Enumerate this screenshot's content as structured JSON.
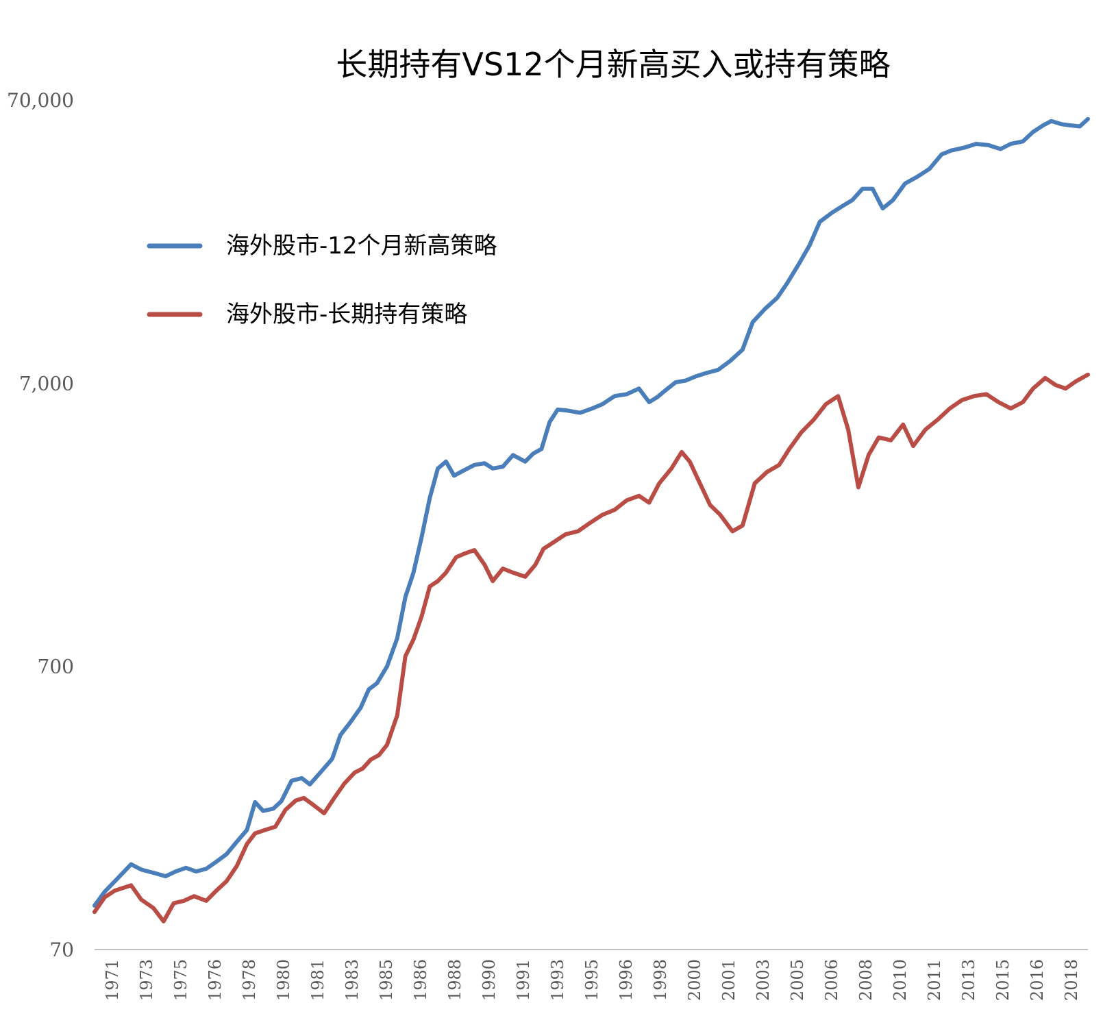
{
  "chart_data": {
    "type": "line",
    "title": "长期持有VS12个月新高买入或持有策略",
    "y_scale": "log",
    "ylim": [
      70,
      70000
    ],
    "y_ticks": [
      "70",
      "700",
      "7,000",
      "70,000"
    ],
    "y_tick_values": [
      70,
      700,
      7000,
      70000
    ],
    "x_tick_labels": [
      "1971",
      "1973",
      "1975",
      "1976",
      "1978",
      "1980",
      "1981",
      "1983",
      "1985",
      "1986",
      "1988",
      "1990",
      "1991",
      "1993",
      "1995",
      "1996",
      "1998",
      "2000",
      "2001",
      "2003",
      "2005",
      "2006",
      "2008",
      "2010",
      "2011",
      "2013",
      "2015",
      "2016",
      "2018"
    ],
    "xlim": [
      1971.0,
      2019.9
    ],
    "legend_position": "upper-left",
    "series": [
      {
        "name": "海外股市-12个月新高策略",
        "color": "#4a7ebb",
        "points": [
          [
            1971.0,
            100
          ],
          [
            1971.5,
            112
          ],
          [
            1972.0,
            122
          ],
          [
            1972.8,
            140
          ],
          [
            1973.3,
            134
          ],
          [
            1974.0,
            130
          ],
          [
            1974.5,
            127
          ],
          [
            1975.0,
            132
          ],
          [
            1975.5,
            136
          ],
          [
            1976.0,
            132
          ],
          [
            1976.5,
            135
          ],
          [
            1977.0,
            143
          ],
          [
            1977.5,
            152
          ],
          [
            1978.0,
            168
          ],
          [
            1978.5,
            185
          ],
          [
            1978.9,
            232
          ],
          [
            1979.3,
            216
          ],
          [
            1979.8,
            220
          ],
          [
            1980.2,
            234
          ],
          [
            1980.7,
            276
          ],
          [
            1981.2,
            282
          ],
          [
            1981.6,
            268
          ],
          [
            1982.2,
            300
          ],
          [
            1982.7,
            330
          ],
          [
            1983.1,
            400
          ],
          [
            1983.6,
            445
          ],
          [
            1984.1,
            500
          ],
          [
            1984.5,
            580
          ],
          [
            1984.9,
            610
          ],
          [
            1985.4,
            700
          ],
          [
            1985.9,
            880
          ],
          [
            1986.3,
            1230
          ],
          [
            1986.7,
            1500
          ],
          [
            1987.1,
            2000
          ],
          [
            1987.5,
            2750
          ],
          [
            1987.9,
            3500
          ],
          [
            1988.3,
            3700
          ],
          [
            1988.7,
            3300
          ],
          [
            1989.2,
            3450
          ],
          [
            1989.7,
            3600
          ],
          [
            1990.2,
            3650
          ],
          [
            1990.6,
            3500
          ],
          [
            1991.1,
            3550
          ],
          [
            1991.6,
            3900
          ],
          [
            1992.2,
            3700
          ],
          [
            1992.6,
            3950
          ],
          [
            1993.0,
            4100
          ],
          [
            1993.4,
            5100
          ],
          [
            1993.8,
            5650
          ],
          [
            1994.3,
            5600
          ],
          [
            1994.9,
            5500
          ],
          [
            1995.5,
            5700
          ],
          [
            1996.0,
            5900
          ],
          [
            1996.6,
            6300
          ],
          [
            1997.2,
            6400
          ],
          [
            1997.8,
            6700
          ],
          [
            1998.3,
            6000
          ],
          [
            1998.7,
            6250
          ],
          [
            1999.1,
            6600
          ],
          [
            1999.6,
            7050
          ],
          [
            2000.1,
            7150
          ],
          [
            2000.6,
            7400
          ],
          [
            2001.1,
            7600
          ],
          [
            2001.7,
            7800
          ],
          [
            2002.3,
            8400
          ],
          [
            2002.9,
            9200
          ],
          [
            2003.4,
            11500
          ],
          [
            2004.0,
            12800
          ],
          [
            2004.6,
            14000
          ],
          [
            2005.1,
            15800
          ],
          [
            2005.7,
            18600
          ],
          [
            2006.2,
            21500
          ],
          [
            2006.7,
            26000
          ],
          [
            2007.3,
            28000
          ],
          [
            2007.8,
            29500
          ],
          [
            2008.3,
            31000
          ],
          [
            2008.8,
            34000
          ],
          [
            2009.3,
            34000
          ],
          [
            2009.8,
            29000
          ],
          [
            2010.3,
            31000
          ],
          [
            2010.9,
            35500
          ],
          [
            2011.5,
            37500
          ],
          [
            2012.1,
            40000
          ],
          [
            2012.7,
            45000
          ],
          [
            2013.2,
            46500
          ],
          [
            2013.8,
            47500
          ],
          [
            2014.4,
            49000
          ],
          [
            2015.0,
            48500
          ],
          [
            2015.6,
            47000
          ],
          [
            2016.1,
            49000
          ],
          [
            2016.7,
            50000
          ],
          [
            2017.2,
            54000
          ],
          [
            2017.7,
            57000
          ],
          [
            2018.1,
            59000
          ],
          [
            2018.6,
            57500
          ],
          [
            2019.0,
            57000
          ],
          [
            2019.5,
            56500
          ],
          [
            2019.9,
            60000
          ]
        ]
      },
      {
        "name": "海外股市-长期持有策略",
        "color": "#b94c44",
        "points": [
          [
            1971.0,
            95
          ],
          [
            1971.5,
            107
          ],
          [
            1972.0,
            113
          ],
          [
            1972.8,
            118
          ],
          [
            1973.3,
            105
          ],
          [
            1973.9,
            98
          ],
          [
            1974.4,
            88
          ],
          [
            1974.9,
            102
          ],
          [
            1975.4,
            104
          ],
          [
            1975.9,
            108
          ],
          [
            1976.5,
            104
          ],
          [
            1977.0,
            113
          ],
          [
            1977.5,
            122
          ],
          [
            1978.0,
            138
          ],
          [
            1978.5,
            165
          ],
          [
            1978.9,
            180
          ],
          [
            1979.4,
            185
          ],
          [
            1979.9,
            190
          ],
          [
            1980.4,
            218
          ],
          [
            1980.9,
            235
          ],
          [
            1981.3,
            240
          ],
          [
            1981.8,
            226
          ],
          [
            1982.3,
            212
          ],
          [
            1982.8,
            240
          ],
          [
            1983.3,
            270
          ],
          [
            1983.8,
            295
          ],
          [
            1984.2,
            305
          ],
          [
            1984.6,
            328
          ],
          [
            1985.0,
            340
          ],
          [
            1985.4,
            370
          ],
          [
            1985.9,
            470
          ],
          [
            1986.3,
            760
          ],
          [
            1986.7,
            870
          ],
          [
            1987.1,
            1050
          ],
          [
            1987.5,
            1340
          ],
          [
            1987.9,
            1400
          ],
          [
            1988.3,
            1500
          ],
          [
            1988.8,
            1700
          ],
          [
            1989.2,
            1750
          ],
          [
            1989.7,
            1800
          ],
          [
            1990.2,
            1600
          ],
          [
            1990.6,
            1400
          ],
          [
            1991.1,
            1550
          ],
          [
            1991.6,
            1500
          ],
          [
            1992.2,
            1450
          ],
          [
            1992.7,
            1600
          ],
          [
            1993.1,
            1820
          ],
          [
            1993.6,
            1920
          ],
          [
            1994.2,
            2050
          ],
          [
            1994.8,
            2100
          ],
          [
            1995.4,
            2250
          ],
          [
            1996.0,
            2400
          ],
          [
            1996.6,
            2500
          ],
          [
            1997.2,
            2700
          ],
          [
            1997.8,
            2800
          ],
          [
            1998.3,
            2650
          ],
          [
            1998.8,
            3100
          ],
          [
            1999.4,
            3500
          ],
          [
            1999.9,
            4000
          ],
          [
            2000.3,
            3700
          ],
          [
            2000.8,
            3100
          ],
          [
            2001.3,
            2600
          ],
          [
            2001.8,
            2400
          ],
          [
            2002.4,
            2100
          ],
          [
            2002.9,
            2200
          ],
          [
            2003.5,
            3100
          ],
          [
            2004.1,
            3400
          ],
          [
            2004.7,
            3600
          ],
          [
            2005.2,
            4100
          ],
          [
            2005.8,
            4700
          ],
          [
            2006.4,
            5200
          ],
          [
            2007.0,
            5900
          ],
          [
            2007.6,
            6300
          ],
          [
            2008.1,
            4800
          ],
          [
            2008.6,
            3000
          ],
          [
            2009.1,
            3900
          ],
          [
            2009.6,
            4500
          ],
          [
            2010.2,
            4400
          ],
          [
            2010.8,
            5000
          ],
          [
            2011.3,
            4200
          ],
          [
            2011.9,
            4800
          ],
          [
            2012.5,
            5200
          ],
          [
            2013.1,
            5700
          ],
          [
            2013.7,
            6100
          ],
          [
            2014.3,
            6300
          ],
          [
            2014.9,
            6400
          ],
          [
            2015.5,
            6000
          ],
          [
            2016.1,
            5700
          ],
          [
            2016.7,
            6000
          ],
          [
            2017.2,
            6700
          ],
          [
            2017.8,
            7300
          ],
          [
            2018.3,
            6900
          ],
          [
            2018.8,
            6700
          ],
          [
            2019.3,
            7100
          ],
          [
            2019.9,
            7500
          ]
        ]
      }
    ]
  }
}
